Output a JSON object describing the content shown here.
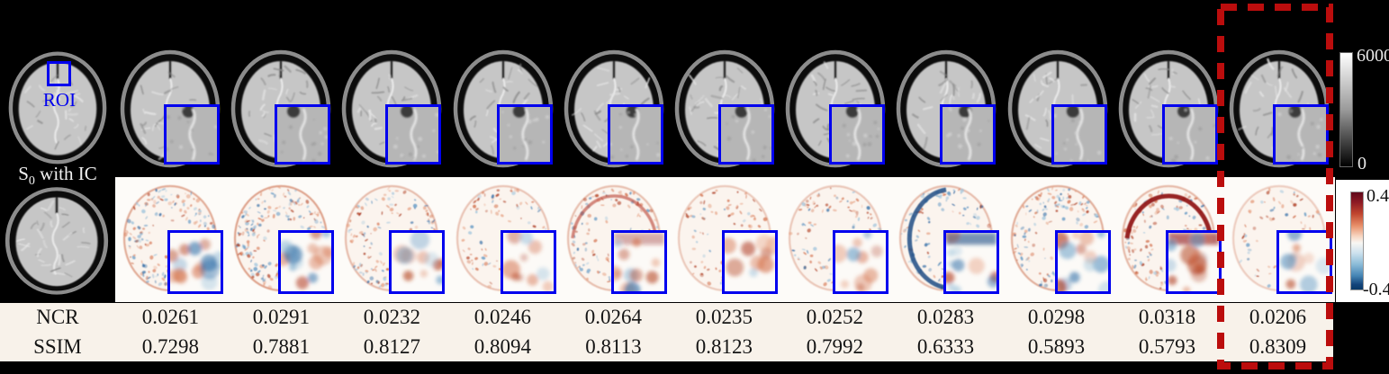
{
  "figure": {
    "reference": {
      "roi_label": "ROI",
      "s_main": "S",
      "s_sub": "0",
      "s_rest": " with IC"
    },
    "metrics": {
      "row1_label": "NCR",
      "row2_label": "SSIM"
    },
    "colorbar_gray": {
      "max": "6000",
      "min": "0"
    },
    "colorbar_diverging": {
      "max": "0.4",
      "min": "-0.4"
    },
    "columns": [
      {
        "ncr": "0.0261",
        "ssim": "0.7298",
        "map": {
          "density": 0.85,
          "red": 0.5,
          "ring": ""
        }
      },
      {
        "ncr": "0.0291",
        "ssim": "0.7881",
        "map": {
          "density": 1.0,
          "red": 0.45,
          "ring": ""
        }
      },
      {
        "ncr": "0.0232",
        "ssim": "0.8127",
        "map": {
          "density": 0.55,
          "red": 0.55,
          "ring": ""
        }
      },
      {
        "ncr": "0.0246",
        "ssim": "0.8094",
        "map": {
          "density": 0.4,
          "red": 0.7,
          "ring": ""
        }
      },
      {
        "ncr": "0.0264",
        "ssim": "0.8113",
        "map": {
          "density": 0.5,
          "red": 0.7,
          "ring": "red-top-medium"
        }
      },
      {
        "ncr": "0.0235",
        "ssim": "0.8123",
        "map": {
          "density": 0.3,
          "red": 0.8,
          "ring": ""
        }
      },
      {
        "ncr": "0.0252",
        "ssim": "0.7992",
        "map": {
          "density": 0.35,
          "red": 0.75,
          "ring": ""
        }
      },
      {
        "ncr": "0.0283",
        "ssim": "0.6333",
        "map": {
          "density": 0.55,
          "red": 0.3,
          "ring": "blue-left-strong"
        }
      },
      {
        "ncr": "0.0298",
        "ssim": "0.5893",
        "map": {
          "density": 0.8,
          "red": 0.45,
          "ring": ""
        }
      },
      {
        "ncr": "0.0318",
        "ssim": "0.5793",
        "map": {
          "density": 0.6,
          "red": 0.6,
          "ring": "red-top-strong"
        }
      },
      {
        "ncr": "0.0206",
        "ssim": "0.8309",
        "map": {
          "density": 0.22,
          "red": 0.6,
          "ring": ""
        }
      }
    ],
    "highlight_column_index": 10,
    "colors": {
      "box_blue": "#0000ee",
      "highlight_red": "#bb0d0d",
      "table_bg": "#f8f2ea",
      "map_bg": "#fdfbf8",
      "gray_max_color": "#ffffff",
      "gray_min_color": "#000000",
      "div_max_color": "#60081a",
      "div_min_color": "#0a3a68"
    }
  }
}
